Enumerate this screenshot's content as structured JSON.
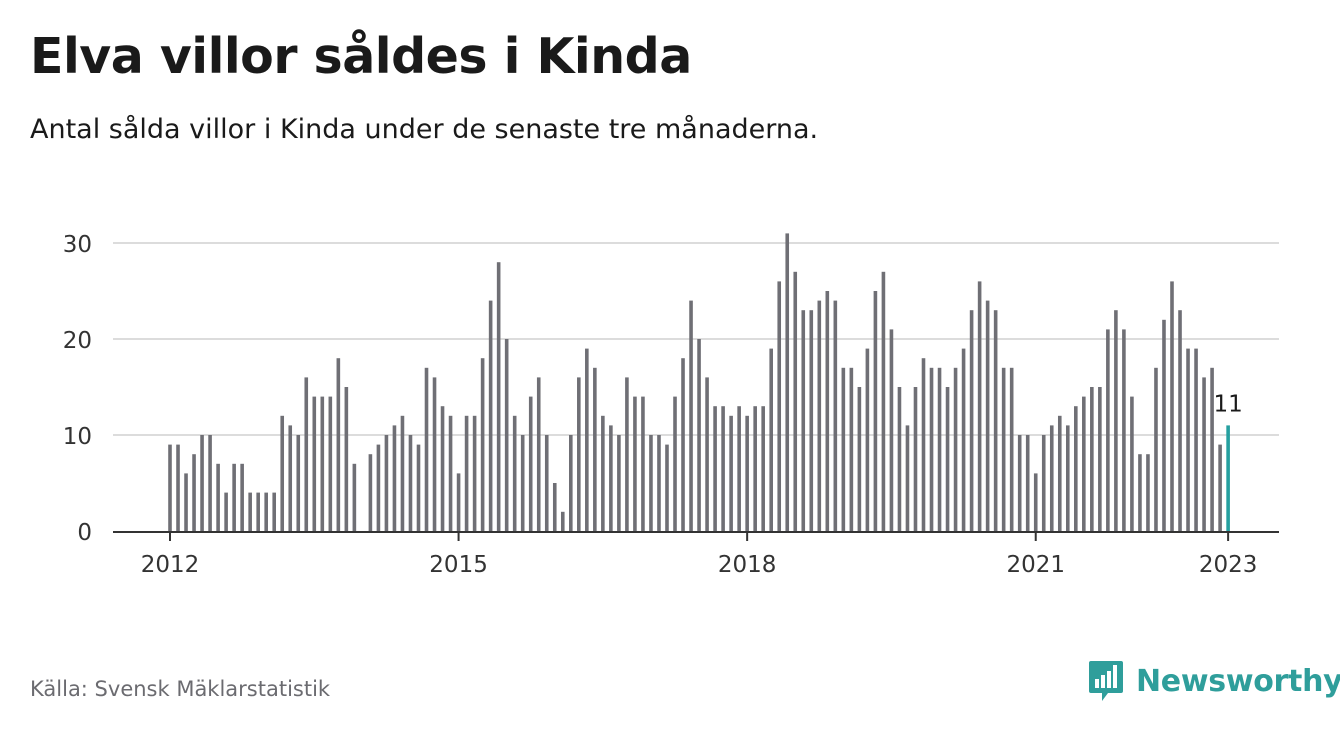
{
  "header": {
    "title": "Elva villor såldes i Kinda",
    "subtitle": "Antal sålda villor i Kinda under de senaste tre månaderna."
  },
  "footer": {
    "source": "Källa: Svensk Mäklarstatistik",
    "brand": "Newsworthy"
  },
  "colors": {
    "bar": "#6f6f75",
    "highlight": "#26a0a0",
    "grid": "#dcdcdc",
    "axis": "#333333",
    "brand": "#2f9e9b"
  },
  "chart_data": {
    "type": "bar",
    "title": "Elva villor såldes i Kinda",
    "subtitle": "Antal sålda villor i Kinda under de senaste tre månaderna.",
    "xlabel": "",
    "ylabel": "",
    "ylim": [
      0,
      30
    ],
    "yticks": [
      0,
      10,
      20,
      30
    ],
    "grid": true,
    "x_tick_labels": [
      {
        "label": "2012",
        "index": 0
      },
      {
        "label": "2015",
        "index": 36
      },
      {
        "label": "2018",
        "index": 72
      },
      {
        "label": "2021",
        "index": 108
      },
      {
        "label": "2023",
        "index": 132
      }
    ],
    "start": "2012-01",
    "end": "2023-01",
    "values": [
      9,
      9,
      6,
      8,
      10,
      10,
      7,
      4,
      7,
      7,
      4,
      4,
      4,
      4,
      12,
      11,
      10,
      16,
      14,
      14,
      14,
      18,
      15,
      7,
      null,
      8,
      9,
      10,
      11,
      12,
      10,
      9,
      17,
      16,
      13,
      12,
      6,
      12,
      12,
      18,
      24,
      28,
      20,
      12,
      10,
      14,
      16,
      10,
      5,
      2,
      10,
      16,
      19,
      17,
      12,
      11,
      10,
      16,
      14,
      14,
      10,
      10,
      9,
      14,
      18,
      24,
      20,
      16,
      13,
      13,
      12,
      13,
      12,
      13,
      13,
      19,
      26,
      31,
      27,
      23,
      23,
      24,
      25,
      24,
      17,
      17,
      15,
      19,
      25,
      27,
      21,
      15,
      11,
      15,
      18,
      17,
      17,
      15,
      17,
      19,
      23,
      26,
      24,
      23,
      17,
      17,
      10,
      10,
      6,
      10,
      11,
      12,
      11,
      13,
      14,
      15,
      15,
      21,
      23,
      21,
      14,
      8,
      8,
      17,
      22,
      26,
      23,
      19,
      19,
      16,
      17,
      9,
      11
    ],
    "highlight_index": 132,
    "annotation": "11"
  }
}
